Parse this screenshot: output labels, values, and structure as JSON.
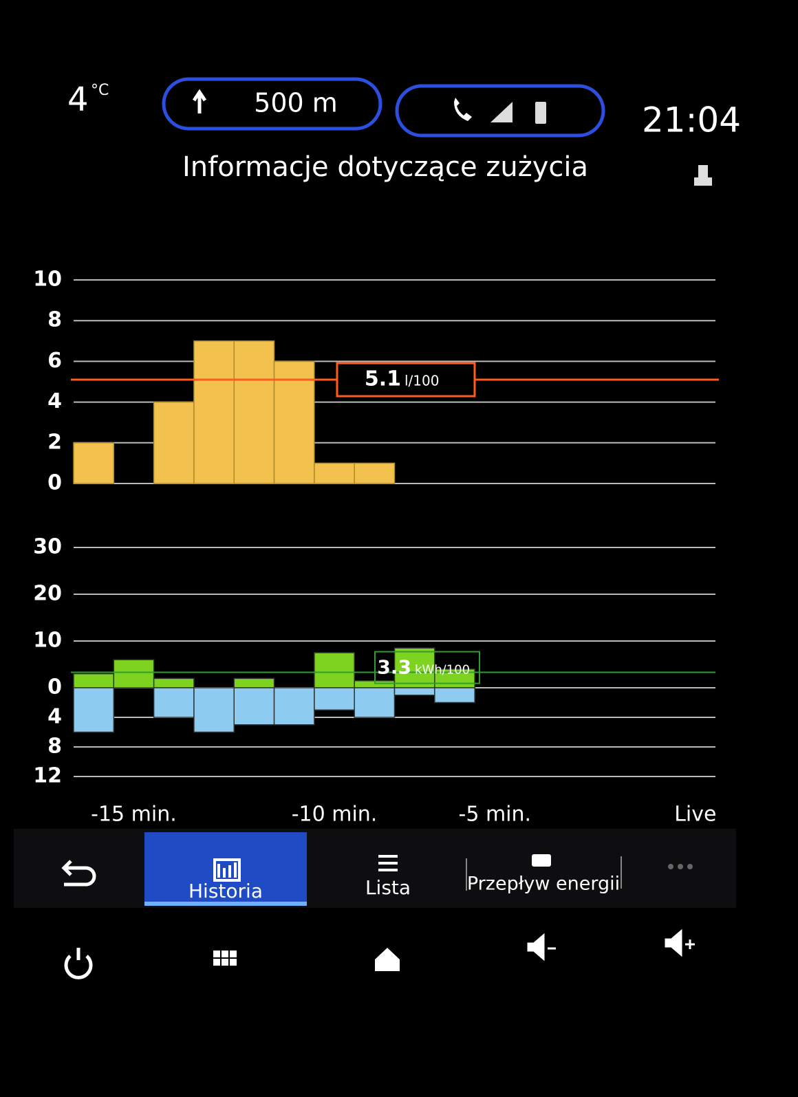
{
  "status": {
    "temperature": "4",
    "temperature_unit": "°C",
    "navigation": "500 m",
    "time": "21:04"
  },
  "header": {
    "title": "Informacje dotyczące zużycia"
  },
  "tabs": [
    "Historia",
    "Lista",
    "Przepływ energii"
  ],
  "chart_data": [
    {
      "type": "bar",
      "unit": "l/100",
      "values": [
        2,
        0,
        4,
        7,
        7,
        6,
        1,
        1,
        null,
        null,
        null,
        null,
        null,
        null,
        null,
        null
      ],
      "color": "#f2c14e",
      "ylim": [
        0,
        10
      ],
      "yticks": [
        0,
        2,
        4,
        6,
        8,
        10
      ],
      "grid": true,
      "mean": 5.1,
      "mean_color": "#ff5a1f"
    },
    {
      "type": "bar",
      "unit": "kWh/100",
      "categories": [
        null,
        "-15 min.",
        null,
        null,
        null,
        null,
        "-10 min.",
        null,
        null,
        null,
        "-5 min.",
        null,
        null,
        null,
        null,
        "Live"
      ],
      "ylim": [
        0,
        30
      ],
      "yticks": [
        0,
        10,
        20,
        30
      ],
      "y2lim": [
        0,
        12
      ],
      "y2ticks": [
        4,
        8,
        12
      ],
      "grid": true,
      "series": [
        {
          "color": "#7ed321",
          "values": [
            3,
            6,
            2,
            0,
            2,
            0,
            7.5,
            1.5,
            8.5,
            4,
            null,
            null,
            null,
            null,
            null,
            null
          ]
        },
        {
          "color": "#8ecbf0",
          "axis": "y2",
          "values": [
            6,
            0,
            4,
            6,
            5,
            5,
            3,
            4,
            1,
            2,
            null,
            null,
            null,
            null,
            null,
            null
          ]
        }
      ],
      "mean": 3.3,
      "mean_color": "#2f9e2f"
    }
  ]
}
